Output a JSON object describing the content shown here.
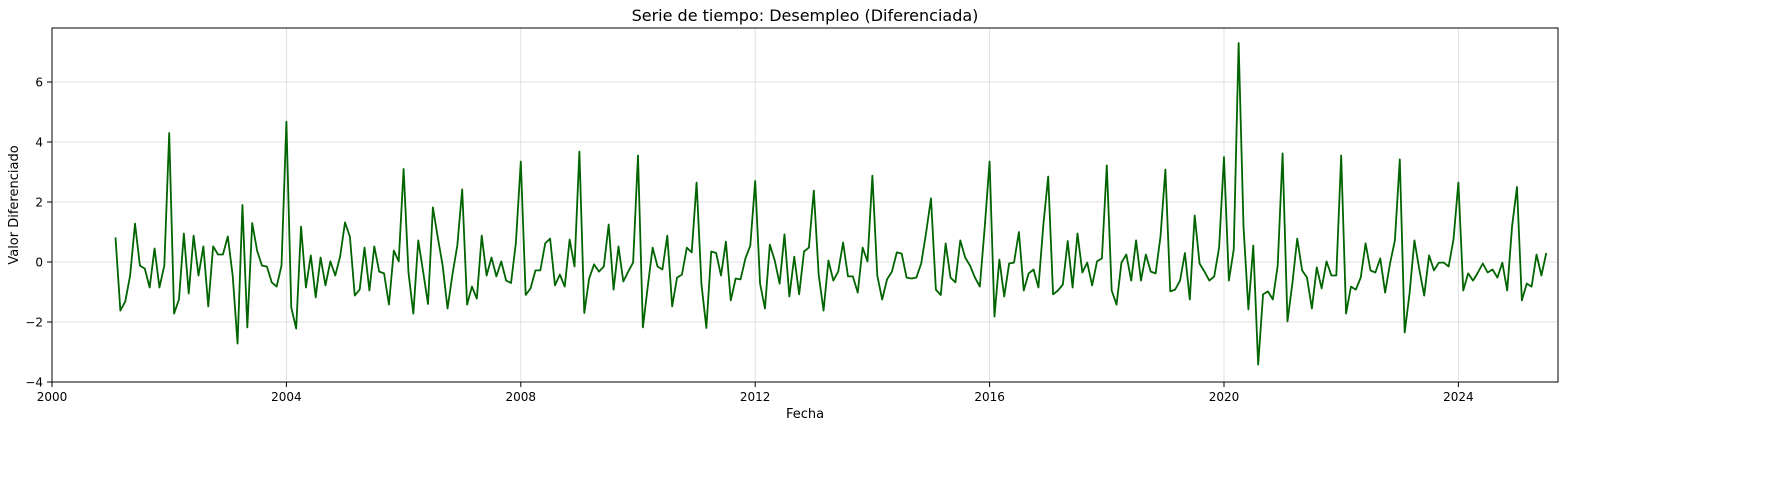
{
  "chart_data": {
    "type": "line",
    "title": "Serie de tiempo: Desempleo (Diferenciada)",
    "xlabel": "Fecha",
    "ylabel": "Valor Diferenciado",
    "xlim": [
      2000.0,
      2025.7
    ],
    "ylim": [
      -4,
      7.8
    ],
    "x_ticks": [
      {
        "value": 2000,
        "label": "2000"
      },
      {
        "value": 2004,
        "label": "2004"
      },
      {
        "value": 2008,
        "label": "2008"
      },
      {
        "value": 2012,
        "label": "2012"
      },
      {
        "value": 2016,
        "label": "2016"
      },
      {
        "value": 2020,
        "label": "2020"
      },
      {
        "value": 2024,
        "label": "2024"
      }
    ],
    "y_ticks": [
      {
        "value": -4,
        "label": "−4"
      },
      {
        "value": -2,
        "label": "−2"
      },
      {
        "value": 0,
        "label": "0"
      },
      {
        "value": 2,
        "label": "2"
      },
      {
        "value": 4,
        "label": "4"
      },
      {
        "value": 6,
        "label": "6"
      }
    ],
    "grid": true,
    "legend": "none",
    "color": "#006400",
    "series": [
      {
        "x_start": "2001-02",
        "frequency": "monthly",
        "values": [
          0.82,
          -1.62,
          -1.32,
          -0.45,
          1.28,
          -0.12,
          -0.22,
          -0.85,
          0.45,
          -0.85,
          -0.12,
          4.3,
          -1.72,
          -1.25,
          0.95,
          -1.05,
          0.88,
          -0.45,
          0.52,
          -1.48,
          0.52,
          0.25,
          0.25,
          0.85,
          -0.45,
          -2.72,
          1.9,
          -2.18,
          1.3,
          0.38,
          -0.12,
          -0.15,
          -0.68,
          -0.82,
          -0.12,
          4.68,
          -1.52,
          -2.22,
          1.18,
          -0.85,
          0.22,
          -1.18,
          0.15,
          -0.78,
          0.02,
          -0.45,
          0.18,
          1.32,
          0.85,
          -1.12,
          -0.92,
          0.48,
          -0.95,
          0.52,
          -0.32,
          -0.38,
          -1.42,
          0.38,
          0.02,
          3.1,
          -0.35,
          -1.72,
          0.72,
          -0.32,
          -1.4,
          1.82,
          0.82,
          -0.12,
          -1.55,
          -0.42,
          0.55,
          2.42,
          -1.42,
          -0.82,
          -1.22,
          0.88,
          -0.45,
          0.15,
          -0.48,
          0.02,
          -0.62,
          -0.7,
          0.65,
          3.35,
          -1.1,
          -0.88,
          -0.28,
          -0.28,
          0.62,
          0.78,
          -0.78,
          -0.42,
          -0.82,
          0.75,
          -0.15,
          3.68,
          -1.7,
          -0.55,
          -0.08,
          -0.32,
          -0.15,
          1.25,
          -0.92,
          0.52,
          -0.65,
          -0.32,
          -0.02,
          3.55,
          -2.18,
          -0.82,
          0.48,
          -0.15,
          -0.25,
          0.88,
          -1.48,
          -0.52,
          -0.42,
          0.48,
          0.32,
          2.65,
          -0.75,
          -2.2,
          0.35,
          0.3,
          -0.45,
          0.68,
          -1.28,
          -0.55,
          -0.58,
          0.12,
          0.55,
          2.7,
          -0.72,
          -1.55,
          0.58,
          0.05,
          -0.72,
          0.92,
          -1.15,
          0.18,
          -1.08,
          0.35,
          0.48,
          2.38,
          -0.42,
          -1.62,
          0.05,
          -0.62,
          -0.32,
          0.65,
          -0.48,
          -0.48,
          -1.02,
          0.48,
          0.02,
          2.88,
          -0.45,
          -1.25,
          -0.58,
          -0.32,
          0.32,
          0.28,
          -0.52,
          -0.55,
          -0.52,
          -0.05,
          0.98,
          2.12,
          -0.92,
          -1.1,
          0.62,
          -0.52,
          -0.68,
          0.72,
          0.15,
          -0.12,
          -0.52,
          -0.82,
          1.15,
          3.35,
          -1.82,
          0.08,
          -1.15,
          -0.05,
          -0.02,
          1.0,
          -0.95,
          -0.38,
          -0.25,
          -0.85,
          1.22,
          2.85,
          -1.08,
          -0.95,
          -0.75,
          0.7,
          -0.85,
          0.95,
          -0.35,
          -0.02,
          -0.78,
          0.02,
          0.12,
          3.22,
          -0.95,
          -1.42,
          -0.02,
          0.25,
          -0.62,
          0.72,
          -0.62,
          0.25,
          -0.32,
          -0.38,
          0.85,
          3.08,
          -0.98,
          -0.92,
          -0.62,
          0.3,
          -1.25,
          1.55,
          -0.05,
          -0.32,
          -0.62,
          -0.48,
          0.48,
          3.5,
          -0.62,
          0.42,
          7.3,
          1.18,
          -1.58,
          0.55,
          -3.42,
          -1.08,
          -0.98,
          -1.25,
          -0.12,
          3.62,
          -1.98,
          -0.72,
          0.78,
          -0.28,
          -0.52,
          -1.55,
          -0.18,
          -0.88,
          0.02,
          -0.45,
          -0.45,
          3.55,
          -1.72,
          -0.82,
          -0.92,
          -0.52,
          0.62,
          -0.28,
          -0.35,
          0.12,
          -1.02,
          -0.05,
          0.72,
          3.42,
          -2.35,
          -1.05,
          0.72,
          -0.25,
          -1.12,
          0.22,
          -0.28,
          -0.02,
          -0.02,
          -0.15,
          0.75,
          2.65,
          -0.95,
          -0.38,
          -0.62,
          -0.35,
          -0.05,
          -0.35,
          -0.25,
          -0.52,
          -0.02,
          -0.95,
          1.2,
          2.5,
          -1.28,
          -0.72,
          -0.82,
          0.25,
          -0.45,
          0.3
        ]
      }
    ]
  }
}
